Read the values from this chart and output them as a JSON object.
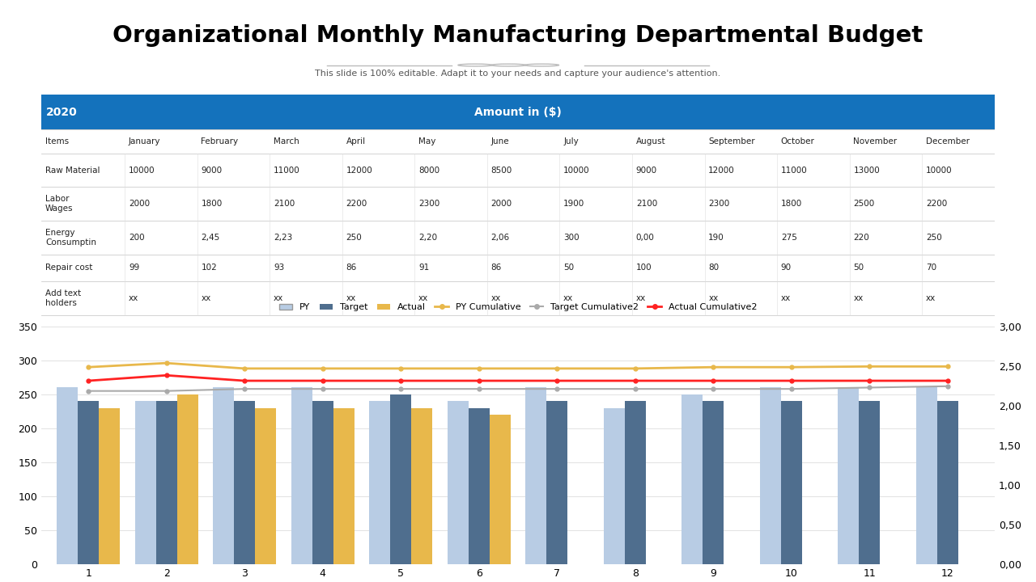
{
  "title": "Organizational Monthly Manufacturing Departmental Budget",
  "subtitle": "This slide is 100% editable. Adapt it to your needs and capture your audience's attention.",
  "header_bg": "#1472BC",
  "header_year": "2020",
  "header_amount": "Amount in ($)",
  "table_columns": [
    "Items",
    "January",
    "February",
    "March",
    "April",
    "May",
    "June",
    "July",
    "August",
    "September",
    "October",
    "November",
    "December"
  ],
  "table_rows": [
    [
      "Raw Material",
      "10000",
      "9000",
      "11000",
      "12000",
      "8000",
      "8500",
      "10000",
      "9000",
      "12000",
      "11000",
      "13000",
      "10000"
    ],
    [
      "Labor\nWages",
      "2000",
      "1800",
      "2100",
      "2200",
      "2300",
      "2000",
      "1900",
      "2100",
      "2300",
      "1800",
      "2500",
      "2200"
    ],
    [
      "Energy\nConsumptin",
      "200",
      "2,45",
      "2,23",
      "250",
      "2,20",
      "2,06",
      "300",
      "0,00",
      "190",
      "275",
      "220",
      "250"
    ],
    [
      "Repair cost",
      "99",
      "102",
      "93",
      "86",
      "91",
      "86",
      "50",
      "100",
      "80",
      "90",
      "50",
      "70"
    ],
    [
      "Add text\nholders",
      "xx",
      "xx",
      "xx",
      "xx",
      "xx",
      "xx",
      "xx",
      "xx",
      "xx",
      "xx",
      "xx",
      "xx"
    ]
  ],
  "months": [
    1,
    2,
    3,
    4,
    5,
    6,
    7,
    8,
    9,
    10,
    11,
    12
  ],
  "PY": [
    260,
    240,
    260,
    260,
    240,
    240,
    260,
    230,
    250,
    260,
    260,
    260
  ],
  "Target": [
    240,
    240,
    240,
    240,
    250,
    230,
    240,
    240,
    240,
    240,
    240,
    240
  ],
  "Actual_bars": [
    230,
    250,
    230,
    230,
    230,
    220
  ],
  "PY_Cumulative": [
    290,
    296,
    288,
    288,
    288,
    288,
    288,
    288,
    290,
    290,
    291,
    291
  ],
  "Target_Cumulative2": [
    255,
    255,
    258,
    258,
    258,
    258,
    258,
    258,
    258,
    258,
    260,
    262
  ],
  "Actual_Cumulative2": [
    270,
    278,
    270,
    270,
    270,
    270,
    270,
    270,
    270,
    270,
    270,
    270
  ],
  "bar_py_color": "#B8CCE4",
  "bar_target_color": "#4F6E8E",
  "bar_actual_color": "#E8B84B",
  "line_py_color": "#E8B84B",
  "line_target_color": "#AAAAAA",
  "line_actual_color": "#FF2222",
  "ylim_left": [
    0,
    350
  ],
  "ylim_right": [
    0.0,
    3.0
  ],
  "right_yticks": [
    0.0,
    0.5,
    1.0,
    1.5,
    2.0,
    2.5,
    3.0
  ],
  "right_yticklabels": [
    "0,00",
    "0,50",
    "1,00",
    "1,50",
    "2,00",
    "2,50",
    "3,00"
  ],
  "left_yticks": [
    0,
    50,
    100,
    150,
    200,
    250,
    300,
    350
  ],
  "background_color": "#FFFFFF",
  "line_scale": 116.67
}
